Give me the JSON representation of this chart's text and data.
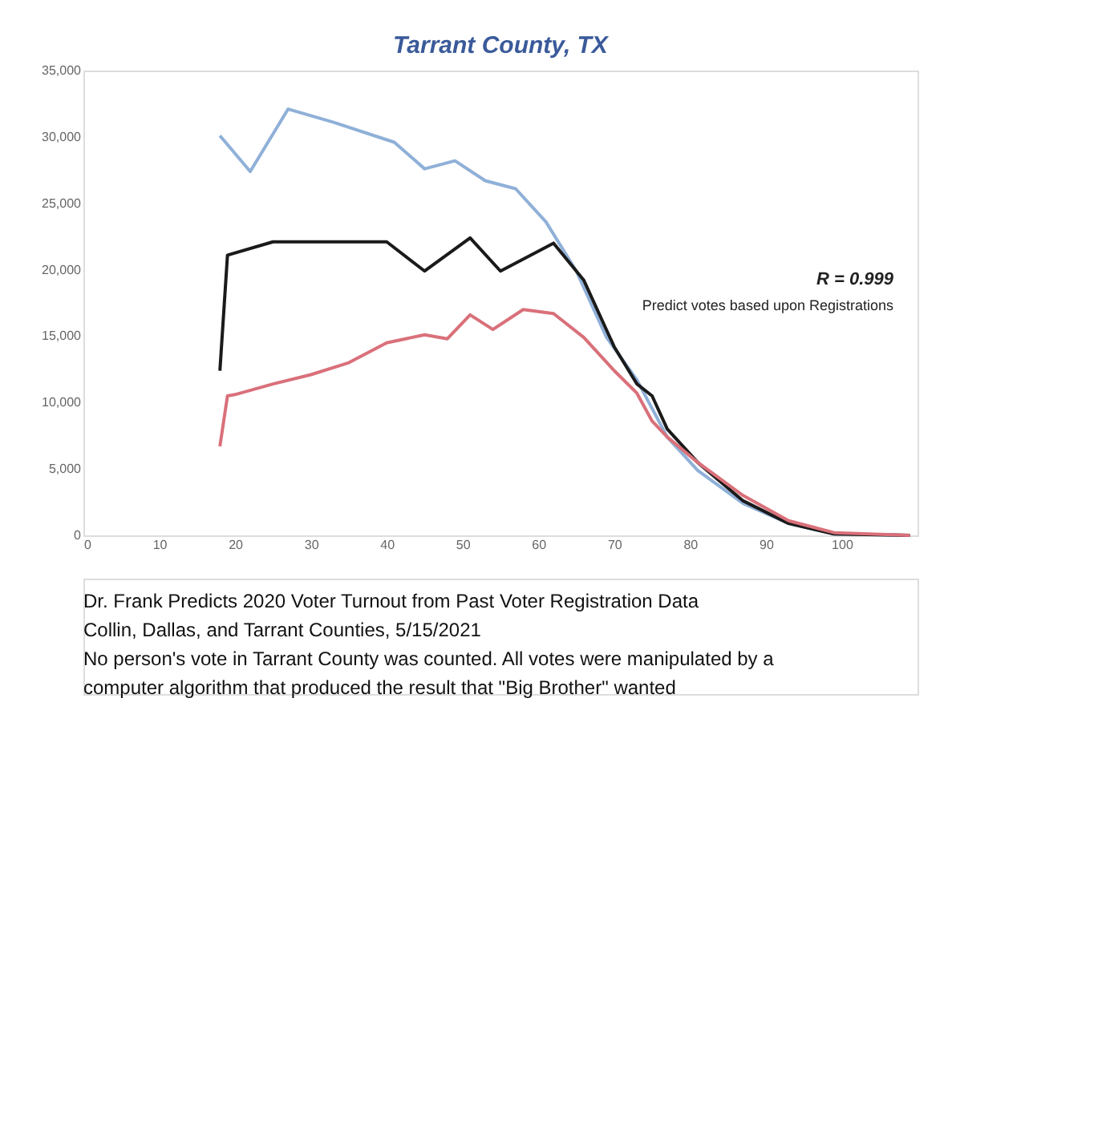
{
  "chart_data": {
    "type": "line",
    "title": "Tarrant County, TX",
    "xlim": [
      0,
      110
    ],
    "xticks": [
      0,
      10,
      20,
      30,
      40,
      50,
      60,
      70,
      80,
      90,
      100
    ],
    "ylim": [
      0,
      35000
    ],
    "yticks": [
      {
        "value": 0,
        "label": "0"
      },
      {
        "value": 5000,
        "label": "5,000"
      },
      {
        "value": 10000,
        "label": "10,000"
      },
      {
        "value": 15000,
        "label": "15,000"
      },
      {
        "value": 20000,
        "label": "20,000"
      },
      {
        "value": 25000,
        "label": "25,000"
      },
      {
        "value": 30000,
        "label": "30,000"
      },
      {
        "value": 35000,
        "label": "35,000"
      }
    ],
    "grid": false,
    "marker": "none",
    "line_style": "solid",
    "series": [
      {
        "color": "#8fb0d8",
        "x": [
          18,
          22,
          27,
          33,
          41,
          45,
          49,
          53,
          57,
          61,
          65,
          69,
          73,
          77,
          81,
          87,
          93,
          99,
          109
        ],
        "values": [
          30100,
          27400,
          32100,
          31100,
          29600,
          27600,
          28200,
          26700,
          26100,
          23600,
          19900,
          14900,
          11700,
          7400,
          4900,
          2400,
          900,
          100,
          0
        ]
      },
      {
        "color": "#1a1a1a",
        "x": [
          18,
          19,
          25,
          30,
          40,
          45,
          51,
          55,
          62,
          66,
          70,
          73,
          75,
          77,
          81,
          87,
          93,
          99,
          109
        ],
        "values": [
          12400,
          21100,
          22100,
          22100,
          22100,
          19900,
          22400,
          19900,
          22000,
          19200,
          14200,
          11400,
          10500,
          8000,
          5500,
          2600,
          900,
          100,
          0
        ]
      },
      {
        "color": "#d9707a",
        "x": [
          18,
          19,
          20,
          25,
          30,
          35,
          40,
          45,
          48,
          51,
          54,
          58,
          62,
          66,
          70,
          73,
          75,
          77,
          81,
          87,
          93,
          99,
          109
        ],
        "values": [
          6700,
          10500,
          10600,
          11400,
          12100,
          13000,
          14500,
          15100,
          14800,
          16600,
          15500,
          17000,
          16700,
          14900,
          12400,
          10700,
          8600,
          7400,
          5500,
          3000,
          1100,
          200,
          0
        ]
      }
    ],
    "annotations": [
      "R = 0.999",
      "Predict votes based upon Registrations",
      "Dr. Frank Predicts 2020 Voter Turnout from Past Voter Registration Data",
      "Collin, Dallas, and Tarrant Counties, 5/15/2021",
      "No person's vote in Tarrant County was counted. All votes were manipulated by a computer algorithm that produced the result that \"Big Brother\" wanted"
    ]
  }
}
